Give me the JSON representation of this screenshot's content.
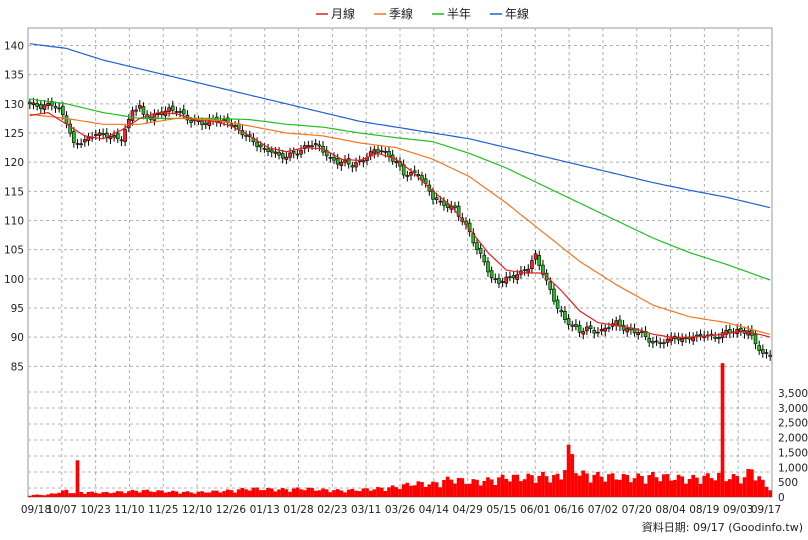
{
  "chart_data": {
    "type": "candlestick",
    "legend": [
      {
        "name": "月線",
        "color": "#e02020"
      },
      {
        "name": "季線",
        "color": "#f07820"
      },
      {
        "name": "半年",
        "color": "#20c020"
      },
      {
        "name": "年線",
        "color": "#2060d0"
      }
    ],
    "price_axis": {
      "ylim": [
        83,
        143
      ],
      "ticks": [
        85,
        90,
        95,
        100,
        105,
        110,
        115,
        120,
        125,
        130,
        135,
        140
      ]
    },
    "volume_axis": {
      "ylim": [
        0,
        3800
      ],
      "tick_labels": [
        "0",
        "500",
        "1,000",
        "1,500",
        "2,000",
        "2,500",
        "3,000",
        "3,500"
      ]
    },
    "x_ticks": [
      "09/18",
      "10/07",
      "10/23",
      "11/10",
      "11/25",
      "12/10",
      "12/26",
      "01/13",
      "01/28",
      "02/23",
      "03/11",
      "03/26",
      "04/14",
      "04/29",
      "05/15",
      "06/01",
      "06/16",
      "07/02",
      "07/20",
      "08/04",
      "08/19",
      "09/03",
      "09/17"
    ],
    "close_anchors": [
      [
        0,
        130
      ],
      [
        3,
        129.5
      ],
      [
        6,
        130
      ],
      [
        8,
        129
      ],
      [
        10,
        127
      ],
      [
        12,
        123
      ],
      [
        14,
        123.5
      ],
      [
        16,
        124
      ],
      [
        18,
        125
      ],
      [
        20,
        124.5
      ],
      [
        22,
        124.5
      ],
      [
        24,
        124
      ],
      [
        25,
        124
      ],
      [
        27,
        127
      ],
      [
        28,
        129
      ],
      [
        30,
        129.5
      ],
      [
        31,
        128
      ],
      [
        33,
        127.5
      ],
      [
        34,
        128
      ],
      [
        36,
        128.5
      ],
      [
        38,
        129
      ],
      [
        40,
        129
      ],
      [
        42,
        128
      ],
      [
        44,
        127
      ],
      [
        46,
        127
      ],
      [
        48,
        126.5
      ],
      [
        50,
        127.5
      ],
      [
        52,
        127
      ],
      [
        54,
        127
      ],
      [
        56,
        126
      ],
      [
        58,
        125
      ],
      [
        60,
        124
      ],
      [
        62,
        123
      ],
      [
        64,
        122
      ],
      [
        66,
        122
      ],
      [
        68,
        121
      ],
      [
        70,
        121
      ],
      [
        72,
        121.5
      ],
      [
        74,
        122
      ],
      [
        76,
        123
      ],
      [
        78,
        123
      ],
      [
        80,
        122
      ],
      [
        82,
        120.5
      ],
      [
        84,
        120
      ],
      [
        86,
        120
      ],
      [
        88,
        119.5
      ],
      [
        90,
        120
      ],
      [
        92,
        121
      ],
      [
        94,
        122
      ],
      [
        96,
        122
      ],
      [
        98,
        121
      ],
      [
        100,
        120
      ],
      [
        102,
        118
      ],
      [
        104,
        118
      ],
      [
        106,
        118
      ],
      [
        108,
        116
      ],
      [
        110,
        114
      ],
      [
        112,
        113
      ],
      [
        114,
        112.5
      ],
      [
        116,
        112
      ],
      [
        118,
        110
      ],
      [
        120,
        108
      ],
      [
        122,
        105
      ],
      [
        124,
        103
      ],
      [
        126,
        100
      ],
      [
        128,
        99.5
      ],
      [
        130,
        100
      ],
      [
        132,
        100.5
      ],
      [
        134,
        101
      ],
      [
        136,
        102
      ],
      [
        138,
        104
      ],
      [
        140,
        101
      ],
      [
        142,
        98
      ],
      [
        144,
        95
      ],
      [
        146,
        93
      ],
      [
        148,
        92
      ],
      [
        150,
        91
      ],
      [
        152,
        91.5
      ],
      [
        154,
        91
      ],
      [
        156,
        91
      ],
      [
        158,
        92
      ],
      [
        160,
        92.5
      ],
      [
        162,
        91.5
      ],
      [
        164,
        91
      ],
      [
        166,
        91
      ],
      [
        168,
        90
      ],
      [
        170,
        89
      ],
      [
        172,
        89
      ],
      [
        174,
        89.5
      ],
      [
        176,
        90
      ],
      [
        178,
        89.5
      ],
      [
        180,
        90
      ],
      [
        182,
        90
      ],
      [
        184,
        90.5
      ],
      [
        186,
        90
      ],
      [
        188,
        90
      ],
      [
        190,
        91
      ],
      [
        192,
        91
      ],
      [
        194,
        91
      ],
      [
        196,
        91
      ],
      [
        198,
        89
      ],
      [
        200,
        87
      ],
      [
        202,
        87
      ]
    ],
    "volume_anchors": [
      [
        0,
        60
      ],
      [
        5,
        70
      ],
      [
        10,
        200
      ],
      [
        12,
        120
      ],
      [
        13,
        950
      ],
      [
        14,
        150
      ],
      [
        20,
        130
      ],
      [
        25,
        160
      ],
      [
        30,
        200
      ],
      [
        35,
        180
      ],
      [
        40,
        160
      ],
      [
        45,
        140
      ],
      [
        50,
        170
      ],
      [
        55,
        200
      ],
      [
        60,
        260
      ],
      [
        65,
        240
      ],
      [
        70,
        230
      ],
      [
        75,
        260
      ],
      [
        80,
        220
      ],
      [
        85,
        200
      ],
      [
        90,
        220
      ],
      [
        95,
        260
      ],
      [
        100,
        310
      ],
      [
        105,
        420
      ],
      [
        110,
        400
      ],
      [
        115,
        560
      ],
      [
        120,
        460
      ],
      [
        125,
        510
      ],
      [
        130,
        600
      ],
      [
        135,
        600
      ],
      [
        140,
        650
      ],
      [
        145,
        600
      ],
      [
        147,
        1400
      ],
      [
        150,
        700
      ],
      [
        155,
        650
      ],
      [
        160,
        620
      ],
      [
        165,
        600
      ],
      [
        170,
        650
      ],
      [
        175,
        600
      ],
      [
        180,
        560
      ],
      [
        185,
        620
      ],
      [
        188,
        650
      ],
      [
        189,
        3600
      ],
      [
        190,
        600
      ],
      [
        195,
        600
      ],
      [
        197,
        850
      ],
      [
        200,
        450
      ],
      [
        202,
        250
      ]
    ],
    "ma_month": [
      [
        0,
        128
      ],
      [
        5,
        128.5
      ],
      [
        10,
        126.5
      ],
      [
        15,
        124.5
      ],
      [
        20,
        124
      ],
      [
        25,
        125.5
      ],
      [
        30,
        127.5
      ],
      [
        35,
        128.5
      ],
      [
        40,
        128.3
      ],
      [
        45,
        127.2
      ],
      [
        50,
        127
      ],
      [
        55,
        126.2
      ],
      [
        60,
        124.5
      ],
      [
        65,
        122.5
      ],
      [
        70,
        121.8
      ],
      [
        75,
        122.5
      ],
      [
        80,
        122.3
      ],
      [
        85,
        120.5
      ],
      [
        90,
        120.3
      ],
      [
        95,
        121.5
      ],
      [
        100,
        120.5
      ],
      [
        105,
        118
      ],
      [
        110,
        115
      ],
      [
        115,
        112.5
      ],
      [
        120,
        108.5
      ],
      [
        125,
        104.5
      ],
      [
        130,
        101.5
      ],
      [
        135,
        101
      ],
      [
        140,
        101
      ],
      [
        145,
        98
      ],
      [
        150,
        94.5
      ],
      [
        155,
        92.5
      ],
      [
        160,
        92
      ],
      [
        165,
        91.5
      ],
      [
        170,
        90.5
      ],
      [
        175,
        90
      ],
      [
        180,
        90
      ],
      [
        185,
        90.2
      ],
      [
        190,
        90.6
      ],
      [
        195,
        91
      ],
      [
        199,
        90.5
      ],
      [
        202,
        90
      ]
    ],
    "ma_quarter": [
      [
        0,
        128.2
      ],
      [
        10,
        127.5
      ],
      [
        20,
        126.5
      ],
      [
        30,
        126.5
      ],
      [
        40,
        127.5
      ],
      [
        50,
        127.3
      ],
      [
        60,
        126.2
      ],
      [
        70,
        125
      ],
      [
        80,
        124.5
      ],
      [
        90,
        123.3
      ],
      [
        100,
        122.5
      ],
      [
        110,
        120.5
      ],
      [
        120,
        117.5
      ],
      [
        130,
        113
      ],
      [
        140,
        108
      ],
      [
        150,
        103
      ],
      [
        160,
        99
      ],
      [
        170,
        95.5
      ],
      [
        180,
        93.5
      ],
      [
        190,
        92.5
      ],
      [
        200,
        90.8
      ],
      [
        202,
        90.5
      ]
    ],
    "ma_half": [
      [
        0,
        130.8
      ],
      [
        10,
        130
      ],
      [
        20,
        128.5
      ],
      [
        30,
        127.5
      ],
      [
        40,
        127.5
      ],
      [
        50,
        127.5
      ],
      [
        60,
        127.3
      ],
      [
        70,
        126.5
      ],
      [
        80,
        126
      ],
      [
        90,
        125
      ],
      [
        100,
        124.2
      ],
      [
        110,
        123.5
      ],
      [
        120,
        121.5
      ],
      [
        130,
        119
      ],
      [
        140,
        116
      ],
      [
        150,
        113
      ],
      [
        160,
        110
      ],
      [
        170,
        107
      ],
      [
        180,
        104.5
      ],
      [
        190,
        102.5
      ],
      [
        202,
        99.8
      ]
    ],
    "ma_year": [
      [
        0,
        140.3
      ],
      [
        10,
        139.5
      ],
      [
        20,
        137.5
      ],
      [
        30,
        136
      ],
      [
        40,
        134.5
      ],
      [
        50,
        133
      ],
      [
        60,
        131.5
      ],
      [
        70,
        130
      ],
      [
        80,
        128.5
      ],
      [
        90,
        127
      ],
      [
        100,
        126
      ],
      [
        110,
        125
      ],
      [
        120,
        124
      ],
      [
        130,
        122.5
      ],
      [
        140,
        121
      ],
      [
        150,
        119.5
      ],
      [
        160,
        118
      ],
      [
        170,
        116.5
      ],
      [
        180,
        115.2
      ],
      [
        190,
        114
      ],
      [
        202,
        112.2
      ]
    ],
    "footer": "資料日期: 09/17  (Goodinfo.tw)"
  }
}
